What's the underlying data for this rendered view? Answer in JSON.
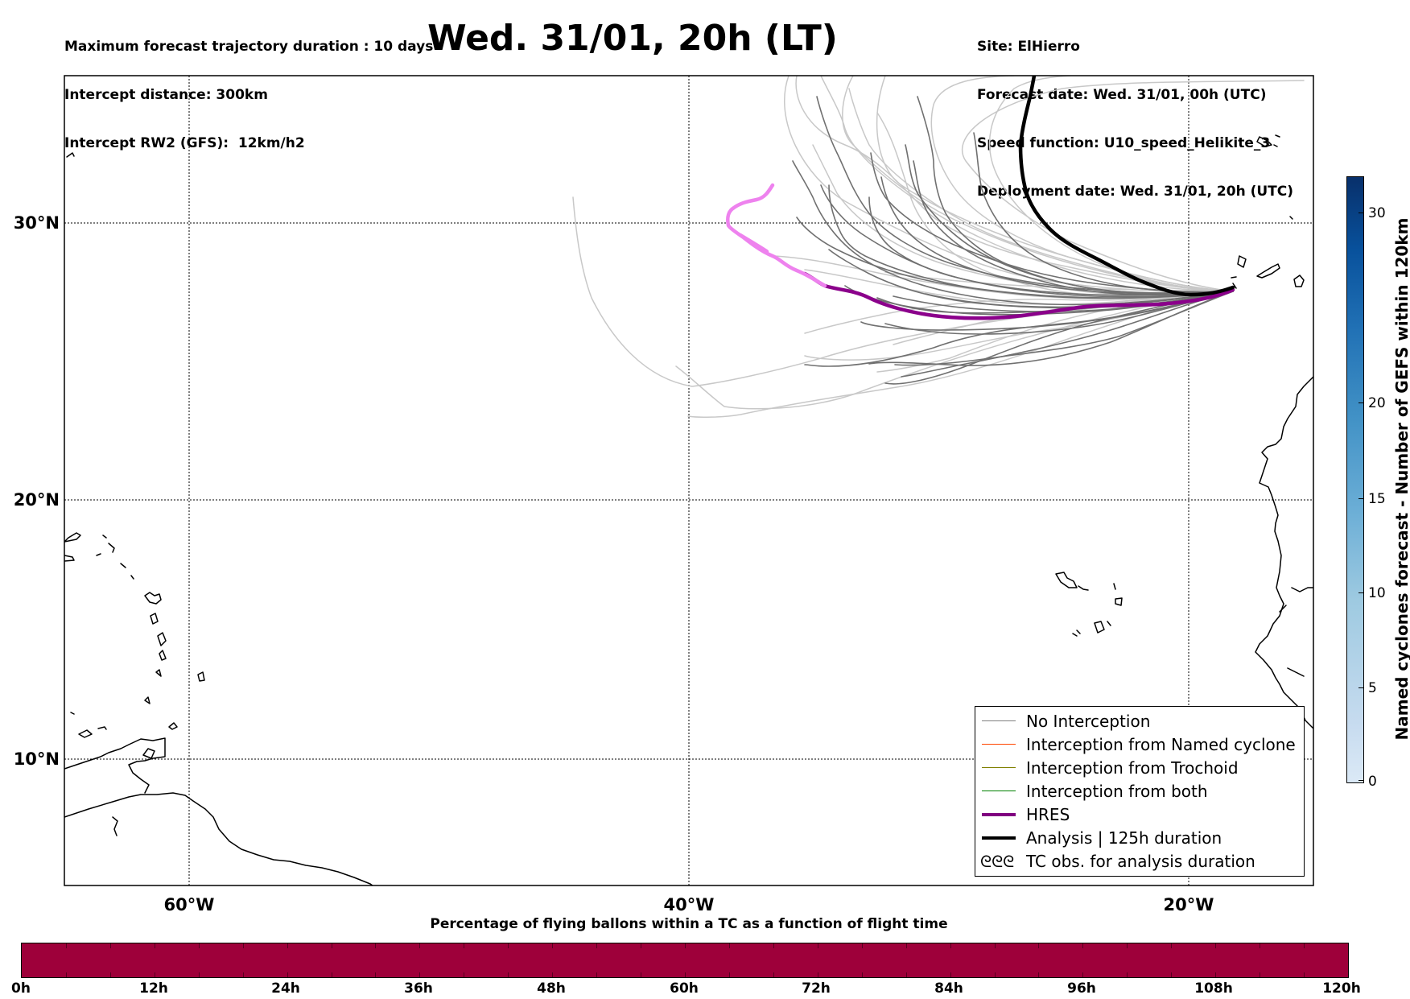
{
  "header": {
    "left_lines": [
      "Maximum forecast trajectory duration : 10 days",
      "Intercept distance: 300km",
      "Intercept RW2 (GFS):  12km/h2"
    ],
    "title": "Wed. 31/01, 20h (LT)",
    "right_lines": [
      "Site: ElHierro",
      "Forecast date: Wed. 31/01, 00h (UTC)",
      "Speed function: U10_speed_Helikite_3",
      "Deployment date: Wed. 31/01, 20h (UTC)"
    ]
  },
  "map": {
    "lat_labels": [
      "30°N",
      "20°N",
      "10°N"
    ],
    "lon_labels": [
      "60°W",
      "40°W",
      "20°W"
    ],
    "colors": {
      "no_interception": "#707070",
      "light_members": "#c8c8c8",
      "hres": "#8b008b",
      "hres_early": "#ee82ee",
      "analysis": "#000000"
    }
  },
  "legend": {
    "items": [
      {
        "label": "No Interception",
        "color": "#808080",
        "width": 1
      },
      {
        "label": "Interception from Named cyclone",
        "color": "#ff4500",
        "width": 1
      },
      {
        "label": "Interception from Trochoid",
        "color": "#808000",
        "width": 1
      },
      {
        "label": "Interception from both",
        "color": "#008000",
        "width": 1
      },
      {
        "label": "HRES",
        "color": "#800080",
        "width": 4
      },
      {
        "label": "Analysis | 125h duration",
        "color": "#000000",
        "width": 4
      }
    ],
    "tc_symbol": "ᘓᘓᘓ",
    "tc_label": "TC obs. for analysis duration"
  },
  "pct_colorbar": {
    "title": "Percentage of flying ballons within a TC as a function of flight time",
    "ticks": [
      "0h",
      "12h",
      "24h",
      "36h",
      "48h",
      "60h",
      "72h",
      "84h",
      "96h",
      "108h",
      "120h"
    ],
    "fill_color": "#9e003a"
  },
  "cyclone_colorbar": {
    "title": "Named cyclones forecast - Number of GEFS within 120km",
    "ticks": [
      "0",
      "5",
      "10",
      "15",
      "20",
      "30"
    ]
  }
}
